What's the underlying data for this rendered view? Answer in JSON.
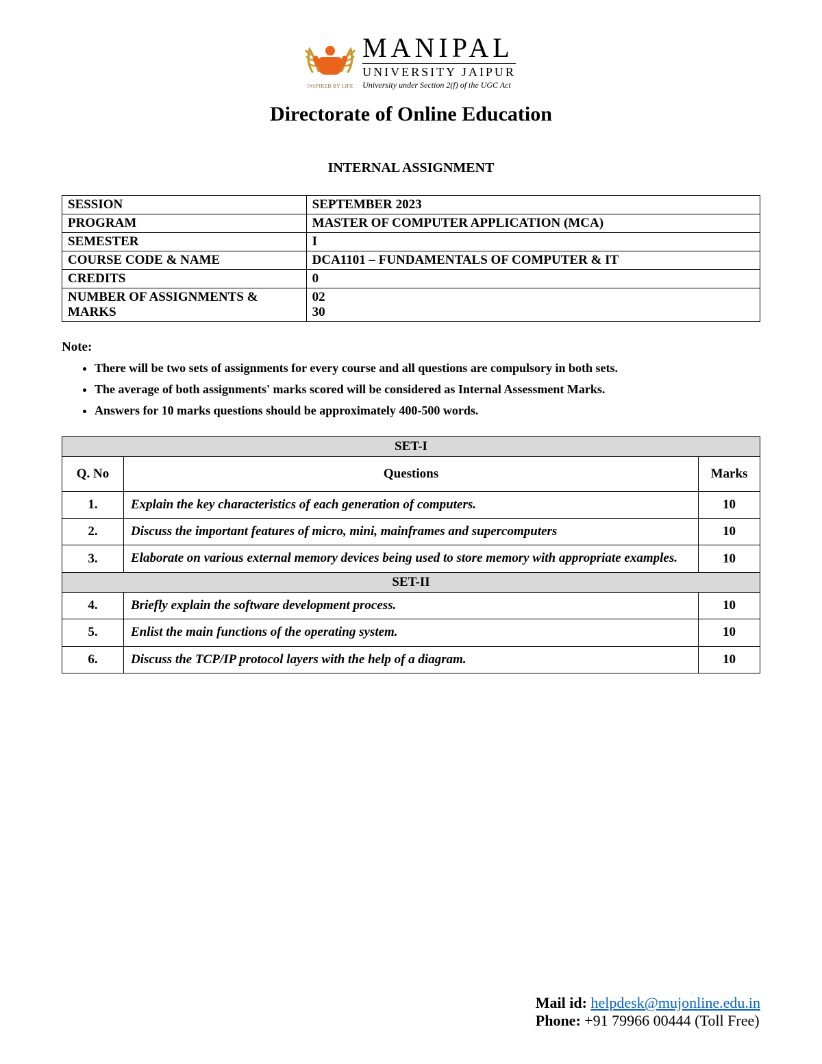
{
  "logo": {
    "main": "MANIPAL",
    "sub": "UNIVERSITY JAIPUR",
    "tagline": "University under Section 2(f) of the UGC Act",
    "motto": "INSPIRED BY LIFE"
  },
  "header": {
    "directorate": "Directorate of Online Education",
    "assignment_title": "INTERNAL ASSIGNMENT"
  },
  "meta": {
    "rows": [
      {
        "label": "SESSION",
        "value": "SEPTEMBER 2023"
      },
      {
        "label": "PROGRAM",
        "value": "MASTER OF COMPUTER APPLICATION (MCA)"
      },
      {
        "label": "SEMESTER",
        "value": "I"
      },
      {
        "label": "COURSE CODE & NAME",
        "value": "DCA1101 – FUNDAMENTALS OF COMPUTER & IT"
      },
      {
        "label": "CREDITS",
        "value": "0"
      },
      {
        "label": "NUMBER OF ASSIGNMENTS & MARKS",
        "value_lines": [
          "02",
          "30"
        ]
      }
    ]
  },
  "note_label": "Note:",
  "notes": [
    "There will be two sets of assignments for every course and all questions are compulsory in both sets.",
    "The average of both assignments' marks scored will be considered as Internal Assessment Marks.",
    "Answers for 10 marks questions should be approximately 400-500 words."
  ],
  "questions_table": {
    "set1_label": "SET-I",
    "set2_label": "SET-II",
    "col_qno": "Q. No",
    "col_questions": "Questions",
    "col_marks": "Marks",
    "set1": [
      {
        "no": "1.",
        "q": "Explain the key characteristics of each generation of computers.",
        "marks": "10"
      },
      {
        "no": "2.",
        "q": "Discuss the important features of micro, mini, mainframes and supercomputers",
        "marks": "10"
      },
      {
        "no": "3.",
        "q": "Elaborate on various external memory devices being used to store memory with appropriate examples.",
        "marks": "10"
      }
    ],
    "set2": [
      {
        "no": "4.",
        "q": "Briefly explain the software development process.",
        "marks": "10"
      },
      {
        "no": "5.",
        "q": "Enlist the main functions of the operating system.",
        "marks": "10"
      },
      {
        "no": "6.",
        "q": "Discuss the TCP/IP protocol layers with the help of a diagram.",
        "marks": "10"
      }
    ]
  },
  "footer": {
    "mail_label": "Mail id: ",
    "mail": "helpdesk@mujonline.edu.in",
    "phone_label": "Phone: ",
    "phone": "+91 79966 00444 (Toll Free)"
  }
}
